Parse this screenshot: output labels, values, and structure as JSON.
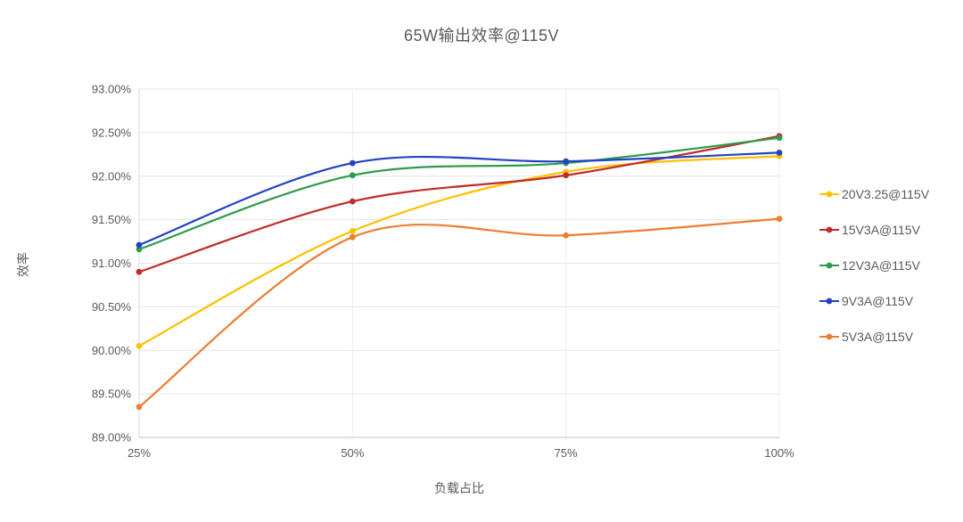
{
  "chart_data": {
    "type": "line",
    "title": "65W输出效率@115V",
    "xlabel": "负载占比",
    "ylabel": "效率",
    "x_tick_labels": [
      "25%",
      "50%",
      "75%",
      "100%"
    ],
    "x_values": [
      25,
      50,
      75,
      100
    ],
    "ylim": [
      89.0,
      93.0
    ],
    "y_tick_values": [
      93.0,
      92.5,
      92.0,
      91.5,
      91.0,
      90.5,
      90.0,
      89.5,
      89.0
    ],
    "y_tick_labels": [
      "93.00%",
      "92.50%",
      "92.00%",
      "91.50%",
      "91.00%",
      "90.50%",
      "90.00%",
      "89.50%",
      "89.00%"
    ],
    "grid": true,
    "line_style": "smooth",
    "legend_position": "right",
    "text_color": "#595959",
    "grid_color": "#E6E6E6",
    "vgrid_color": "#EEEEEE",
    "axis_line_color": "#BFBFBF",
    "series": [
      {
        "name": "20V3.25@115V",
        "color": "#FFC000",
        "values": [
          90.05,
          91.37,
          92.05,
          92.23
        ]
      },
      {
        "name": "15V3A@115V",
        "color": "#C02B2B",
        "values": [
          90.9,
          91.71,
          92.01,
          92.46
        ]
      },
      {
        "name": "12V3A@115V",
        "color": "#2E9B4B",
        "values": [
          91.16,
          92.01,
          92.15,
          92.44
        ]
      },
      {
        "name": "9V3A@115V",
        "color": "#2241C5",
        "values": [
          91.21,
          92.15,
          92.17,
          92.27
        ]
      },
      {
        "name": "5V3A@115V",
        "color": "#ED7D31",
        "values": [
          89.35,
          91.3,
          91.32,
          91.51
        ]
      }
    ]
  }
}
